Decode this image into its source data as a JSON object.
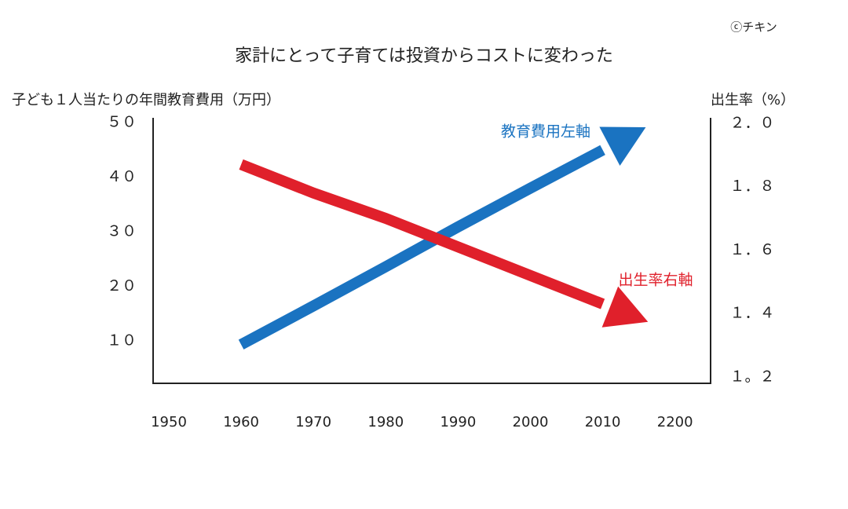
{
  "chart_data": {
    "type": "line",
    "title": "家計にとって子育ては投資からコストに変わった",
    "credit": "ⓒチキン",
    "y_label": "子ども１人当たりの年間教育費用（万円）",
    "y2_label": "出生率（%）",
    "categories": [
      "1950",
      "1960",
      "1970",
      "1980",
      "1990",
      "2000",
      "2010",
      "2200"
    ],
    "ylim": [
      2.2,
      50.9
    ],
    "yticks": [
      {
        "value": 10,
        "label": "１０"
      },
      {
        "value": 20,
        "label": "２０"
      },
      {
        "value": 30,
        "label": "３０"
      },
      {
        "value": 40,
        "label": "４０"
      },
      {
        "value": 50,
        "label": "５０"
      }
    ],
    "y2lim": [
      1.18,
      2.017
    ],
    "y2ticks": [
      {
        "value": 1.2,
        "label": "１。２"
      },
      {
        "value": 1.4,
        "label": "１．４"
      },
      {
        "value": 1.6,
        "label": "１．６"
      },
      {
        "value": 1.8,
        "label": "１．８"
      },
      {
        "value": 2.0,
        "label": "２．０"
      }
    ],
    "series": [
      {
        "name": "教育費用左軸",
        "color": "#1a73c1",
        "values": [
          null,
          9.3,
          16.4,
          23.6,
          30.9,
          38.0,
          45.0,
          null
        ]
      },
      {
        "name": "出生率右軸",
        "color": "#e0202b",
        "axis": "y2",
        "values": [
          null,
          1.87,
          1.78,
          1.7,
          1.61,
          1.52,
          1.43,
          null
        ]
      }
    ]
  }
}
